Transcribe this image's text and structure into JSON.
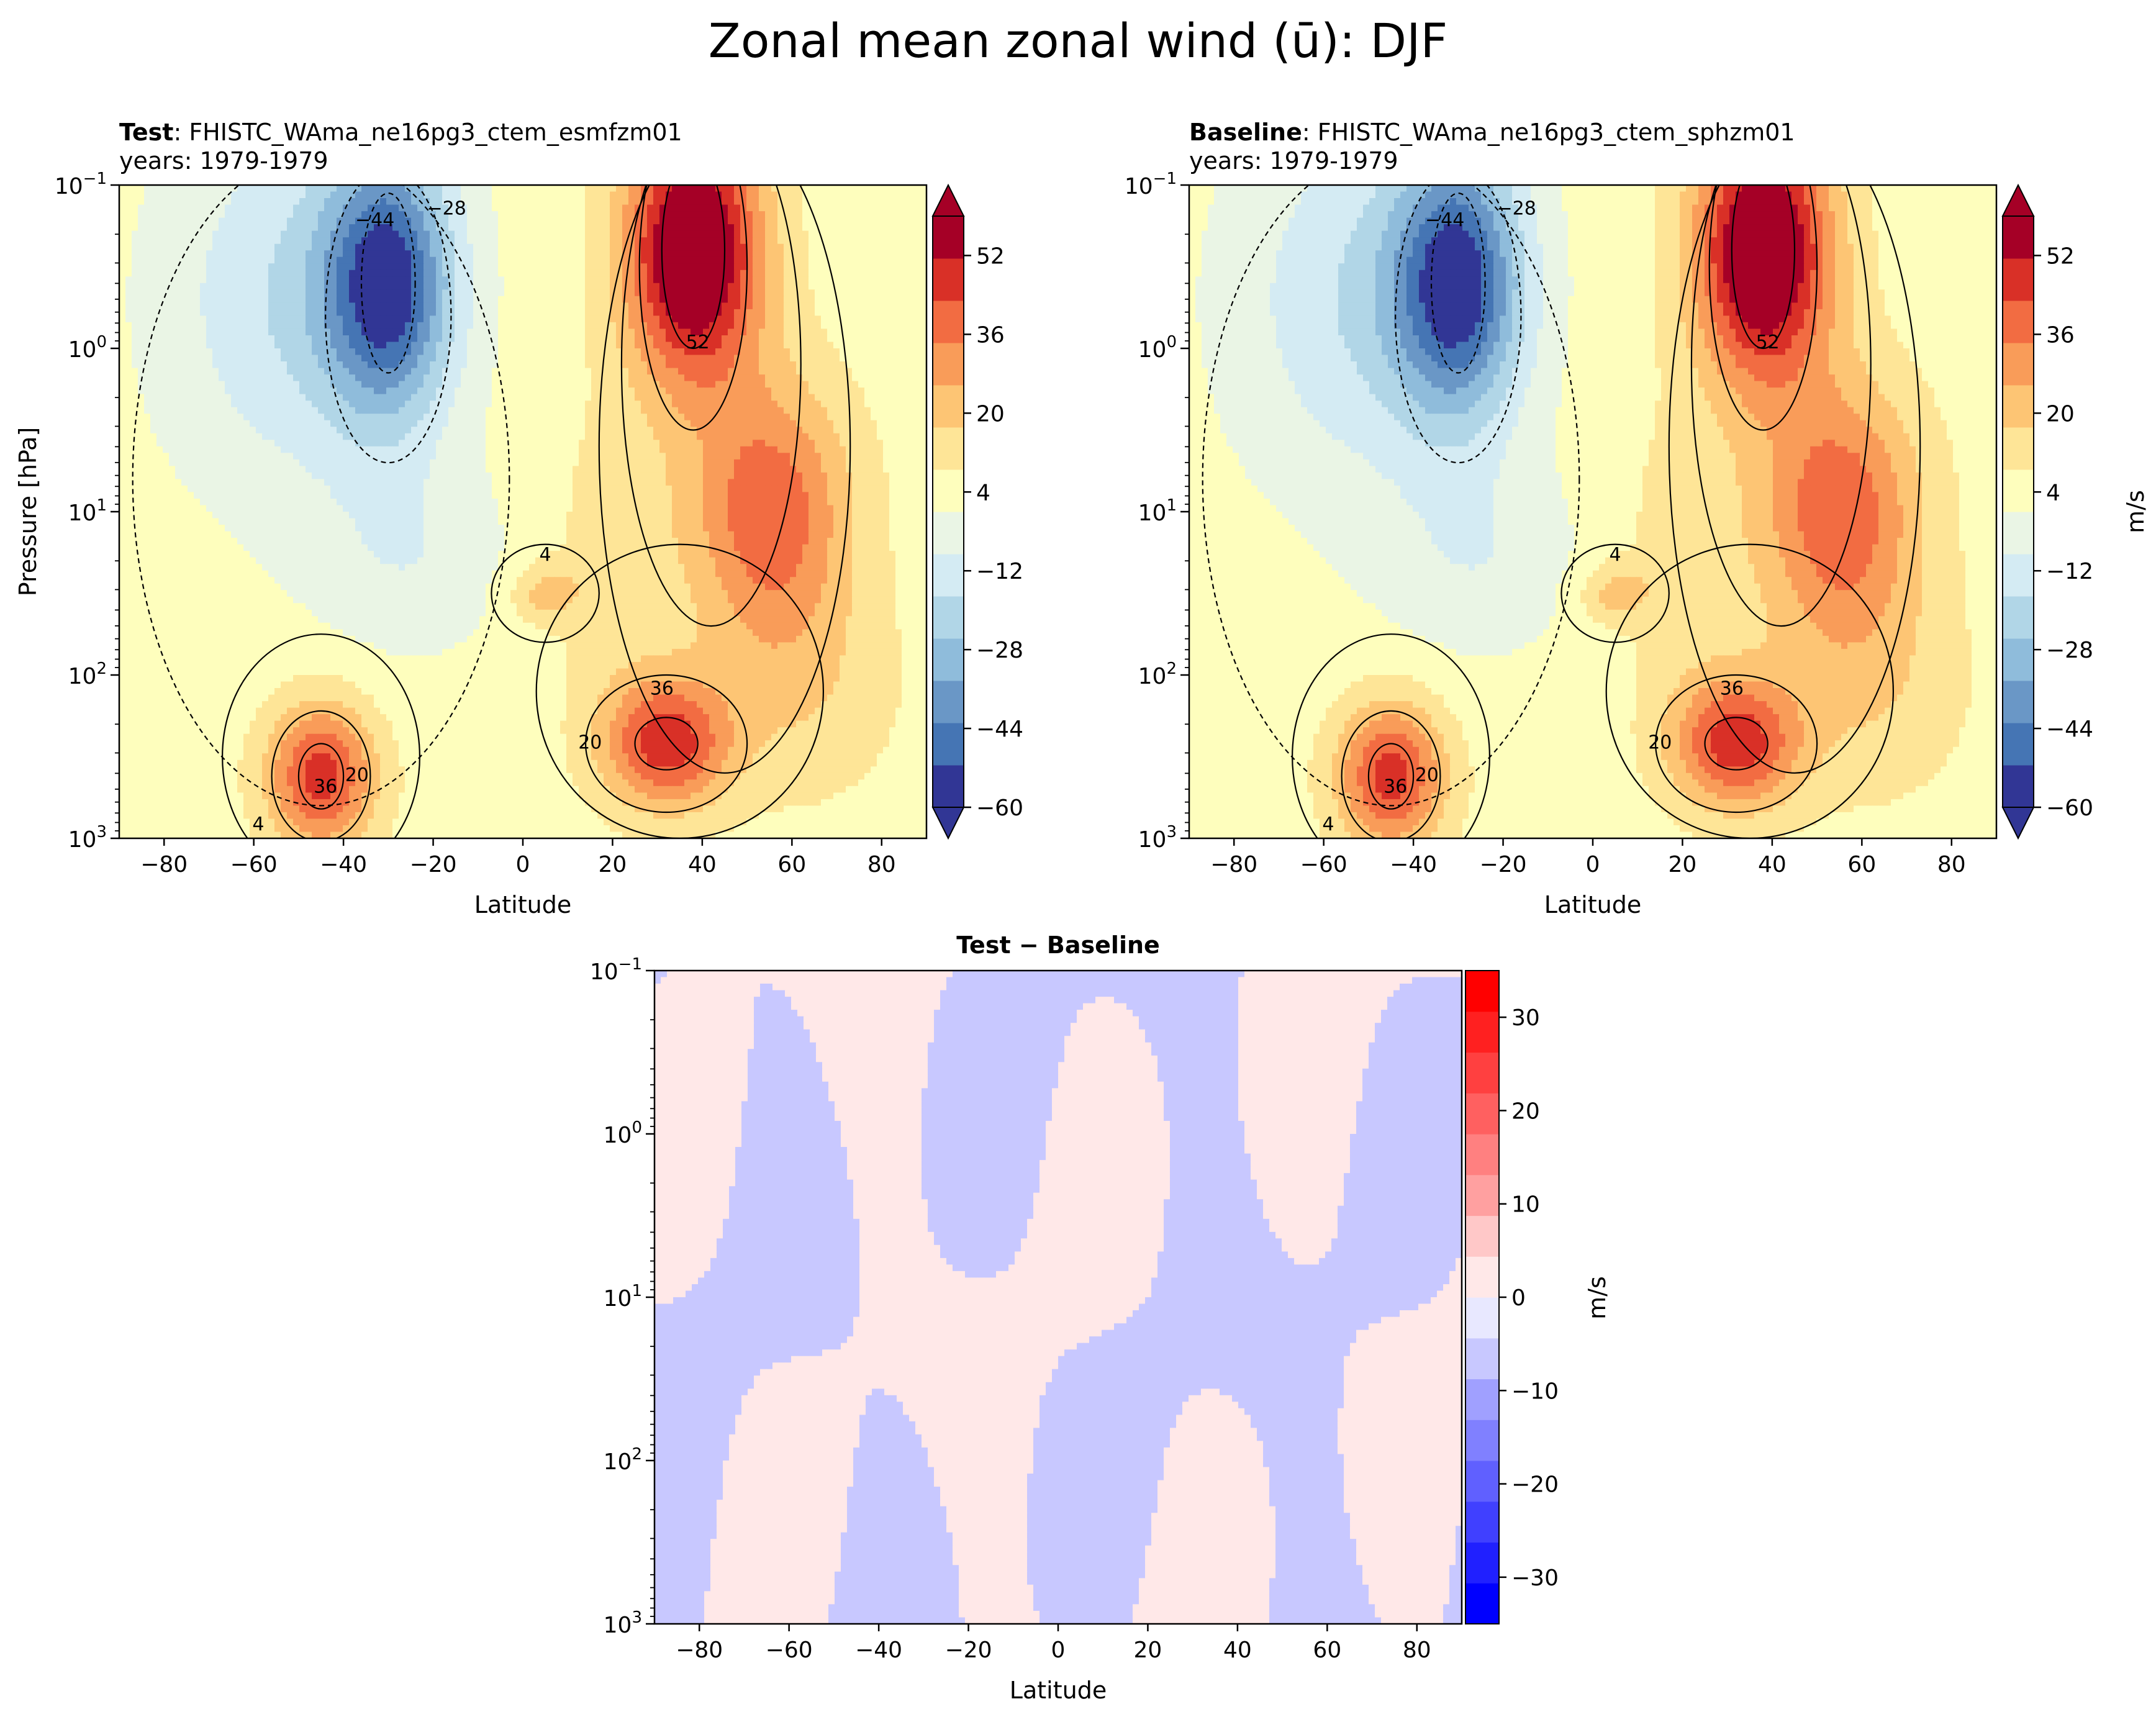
{
  "figure": {
    "title": "Zonal mean zonal wind (ū): DJF"
  },
  "chart_data": [
    {
      "id": "test",
      "type": "heatmap",
      "title_bold": "Test",
      "title_rest": ": FHISTC_WAma_ne16pg3_ctem_esmfzm01",
      "subtitle": "years: 1979-1979",
      "xlabel": "Latitude",
      "ylabel": "Pressure [hPa]",
      "xlim": [
        -90,
        90
      ],
      "ylim": [
        1000,
        0.1
      ],
      "yscale": "log",
      "xticks": [
        "−80",
        "−60",
        "−40",
        "−20",
        "0",
        "20",
        "40",
        "60",
        "80"
      ],
      "yticks": [
        {
          "base": "10",
          "exp": "−1"
        },
        {
          "base": "10",
          "exp": "0"
        },
        {
          "base": "10",
          "exp": "1"
        },
        {
          "base": "10",
          "exp": "2"
        },
        {
          "base": "10",
          "exp": "3"
        }
      ],
      "contour_labels": [
        "−44",
        "−28",
        "52",
        "4",
        "36",
        "36",
        "20",
        "20",
        "4"
      ],
      "colorbar": {
        "ticks": [
          "52",
          "36",
          "20",
          "4",
          "−12",
          "−28",
          "−44",
          "−60"
        ],
        "range": [
          -60,
          60
        ],
        "extend": "both",
        "label": ""
      },
      "features": [
        {
          "lat": 38,
          "logp": -0.6,
          "value": 62
        },
        {
          "lat": -30,
          "logp": -0.4,
          "value": -50
        },
        {
          "lat": -45,
          "logp": 2.6,
          "value": 40
        },
        {
          "lat": 32,
          "logp": 2.4,
          "value": 40
        },
        {
          "lat": 5,
          "logp": 1.5,
          "value": 15
        }
      ]
    },
    {
      "id": "baseline",
      "type": "heatmap",
      "title_bold": "Baseline",
      "title_rest": ": FHISTC_WAma_ne16pg3_ctem_sphzm01",
      "subtitle": "years: 1979-1979",
      "xlabel": "Latitude",
      "ylabel": "",
      "xlim": [
        -90,
        90
      ],
      "ylim": [
        1000,
        0.1
      ],
      "yscale": "log",
      "xticks": [
        "−80",
        "−60",
        "−40",
        "−20",
        "0",
        "20",
        "40",
        "60",
        "80"
      ],
      "yticks": [
        {
          "base": "10",
          "exp": "−1"
        },
        {
          "base": "10",
          "exp": "0"
        },
        {
          "base": "10",
          "exp": "1"
        },
        {
          "base": "10",
          "exp": "2"
        },
        {
          "base": "10",
          "exp": "3"
        }
      ],
      "contour_labels": [
        "−44",
        "−28",
        "52",
        "4",
        "36",
        "36",
        "20",
        "20",
        "4"
      ],
      "colorbar": {
        "ticks": [
          "52",
          "36",
          "20",
          "4",
          "−12",
          "−28",
          "−44",
          "−60"
        ],
        "range": [
          -60,
          60
        ],
        "extend": "both",
        "label": "m/s"
      },
      "features": [
        {
          "lat": 38,
          "logp": -0.6,
          "value": 62
        },
        {
          "lat": -30,
          "logp": -0.4,
          "value": -50
        },
        {
          "lat": -45,
          "logp": 2.6,
          "value": 40
        },
        {
          "lat": 32,
          "logp": 2.4,
          "value": 40
        },
        {
          "lat": 5,
          "logp": 1.5,
          "value": 15
        }
      ]
    },
    {
      "id": "diff",
      "type": "heatmap",
      "title": "Test − Baseline",
      "xlabel": "Latitude",
      "ylabel": "",
      "xlim": [
        -90,
        90
      ],
      "ylim": [
        1000,
        0.1
      ],
      "yscale": "log",
      "xticks": [
        "−80",
        "−60",
        "−40",
        "−20",
        "0",
        "20",
        "40",
        "60",
        "80"
      ],
      "yticks": [
        {
          "base": "10",
          "exp": "−1"
        },
        {
          "base": "10",
          "exp": "0"
        },
        {
          "base": "10",
          "exp": "1"
        },
        {
          "base": "10",
          "exp": "2"
        },
        {
          "base": "10",
          "exp": "3"
        }
      ],
      "colorbar": {
        "ticks": [
          "30",
          "20",
          "10",
          "0",
          "−10",
          "−20",
          "−30"
        ],
        "range": [
          -35,
          35
        ],
        "label": "m/s"
      },
      "value_range": [
        -5,
        5
      ]
    }
  ]
}
